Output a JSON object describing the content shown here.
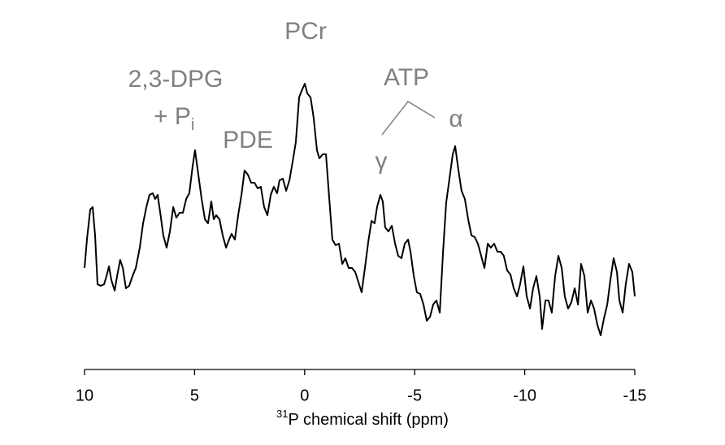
{
  "chart_data": {
    "type": "line",
    "x_label_sup": "31",
    "x_label": "P chemical shift (ppm)",
    "annotations": {
      "pcr": "PCr",
      "dpg": "2,3-DPG",
      "pi": "+ P",
      "pi_sub": "i",
      "pde": "PDE",
      "atp": "ATP",
      "gamma": "γ",
      "alpha": "α"
    },
    "xlim": [
      10,
      -15
    ],
    "xticks": [
      10,
      5,
      0,
      -5,
      -10,
      -15
    ],
    "ylim": [
      0,
      355
    ],
    "color": "#000000",
    "x": [
      10.0,
      9.89,
      9.74,
      9.63,
      9.52,
      9.41,
      9.26,
      9.11,
      9.0,
      8.89,
      8.78,
      8.63,
      8.52,
      8.38,
      8.26,
      8.12,
      7.97,
      7.82,
      7.67,
      7.49,
      7.34,
      7.19,
      7.05,
      6.9,
      6.79,
      6.68,
      6.57,
      6.42,
      6.27,
      6.12,
      5.97,
      5.83,
      5.68,
      5.53,
      5.38,
      5.24,
      5.09,
      4.98,
      4.83,
      4.68,
      4.53,
      4.39,
      4.24,
      4.13,
      4.02,
      3.87,
      3.72,
      3.57,
      3.43,
      3.32,
      3.17,
      3.02,
      2.87,
      2.73,
      2.58,
      2.43,
      2.28,
      2.13,
      1.99,
      1.84,
      1.69,
      1.54,
      1.4,
      1.25,
      1.14,
      0.99,
      0.84,
      0.69,
      0.55,
      0.4,
      0.25,
      0.14,
      -0.01,
      -0.12,
      -0.27,
      -0.41,
      -0.56,
      -0.67,
      -0.82,
      -0.97,
      -1.12,
      -1.26,
      -1.41,
      -1.56,
      -1.71,
      -1.85,
      -2.0,
      -2.15,
      -2.3,
      -2.45,
      -2.59,
      -2.74,
      -2.89,
      -3.04,
      -3.18,
      -3.29,
      -3.44,
      -3.55,
      -3.66,
      -3.81,
      -3.96,
      -4.11,
      -4.25,
      -4.4,
      -4.55,
      -4.7,
      -4.81,
      -4.96,
      -5.1,
      -5.25,
      -5.4,
      -5.55,
      -5.7,
      -5.84,
      -5.99,
      -6.14,
      -6.29,
      -6.43,
      -6.58,
      -6.73,
      -6.84,
      -6.99,
      -7.13,
      -7.28,
      -7.43,
      -7.58,
      -7.73,
      -7.87,
      -8.02,
      -8.17,
      -8.32,
      -8.46,
      -8.61,
      -8.76,
      -8.91,
      -9.05,
      -9.2,
      -9.35,
      -9.5,
      -9.65,
      -9.79,
      -9.94,
      -10.09,
      -10.24,
      -10.38,
      -10.53,
      -10.68,
      -10.79,
      -10.94,
      -11.08,
      -11.23,
      -11.38,
      -11.53,
      -11.68,
      -11.82,
      -11.97,
      -12.12,
      -12.27,
      -12.42,
      -12.56,
      -12.71,
      -12.86,
      -13.01,
      -13.15,
      -13.3,
      -13.45,
      -13.6,
      -13.75,
      -13.89,
      -14.04,
      -14.19,
      -14.3,
      -14.45,
      -14.59,
      -14.74,
      -14.89,
      -15.0
    ],
    "values": [
      125,
      160,
      197,
      200,
      165,
      105,
      103,
      105,
      115,
      127,
      110,
      97,
      115,
      135,
      125,
      100,
      103,
      115,
      125,
      150,
      180,
      200,
      215,
      217,
      210,
      215,
      195,
      165,
      150,
      170,
      200,
      187,
      193,
      193,
      210,
      217,
      250,
      270,
      240,
      210,
      185,
      180,
      207,
      185,
      190,
      185,
      165,
      150,
      160,
      167,
      160,
      190,
      215,
      245,
      240,
      230,
      230,
      223,
      225,
      200,
      190,
      215,
      225,
      217,
      233,
      235,
      220,
      233,
      255,
      280,
      335,
      343,
      352,
      340,
      335,
      310,
      270,
      260,
      265,
      265,
      210,
      160,
      153,
      155,
      130,
      137,
      125,
      125,
      120,
      107,
      95,
      125,
      157,
      183,
      180,
      200,
      215,
      207,
      175,
      170,
      177,
      155,
      140,
      137,
      155,
      160,
      145,
      115,
      95,
      93,
      80,
      60,
      65,
      80,
      85,
      70,
      145,
      205,
      235,
      265,
      275,
      245,
      220,
      210,
      185,
      165,
      163,
      155,
      140,
      125,
      155,
      150,
      155,
      145,
      145,
      140,
      122,
      117,
      100,
      90,
      105,
      127,
      90,
      75,
      100,
      115,
      90,
      50,
      85,
      85,
      70,
      115,
      140,
      125,
      90,
      75,
      83,
      100,
      80,
      130,
      115,
      70,
      85,
      75,
      55,
      42,
      63,
      80,
      110,
      137,
      120,
      85,
      70,
      105,
      130,
      120,
      90
    ]
  }
}
